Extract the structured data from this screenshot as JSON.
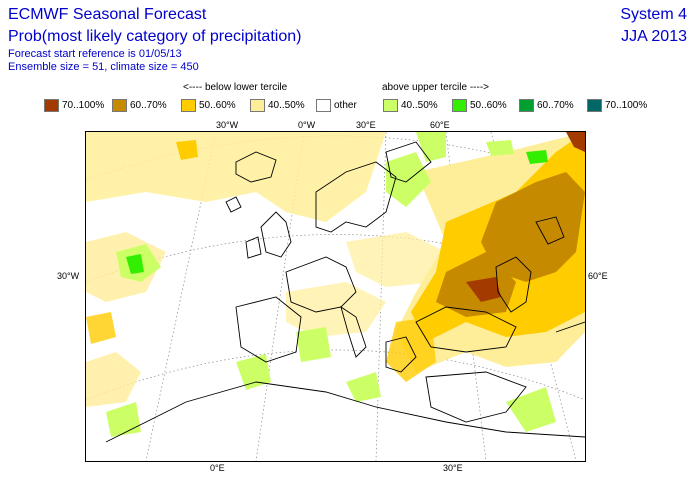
{
  "header": {
    "title": "ECMWF Seasonal Forecast",
    "subtitle": "Prob(most likely category of precipitation)",
    "start_ref": "Forecast start reference is 01/05/13",
    "ensemble": "Ensemble size = 51, climate size = 450",
    "system": "System 4",
    "period": "JJA 2013"
  },
  "legend": {
    "below_note": "<---- below lower tercile",
    "above_note": "above upper tercile ---->",
    "items": [
      {
        "label": "70..100%",
        "color": "#a33b00"
      },
      {
        "label": "60..70%",
        "color": "#c68a00"
      },
      {
        "label": "50..60%",
        "color": "#ffcc00"
      },
      {
        "label": "40..50%",
        "color": "#ffee99"
      },
      {
        "label": "other",
        "color": "#ffffff"
      },
      {
        "label": "40..50%",
        "color": "#ccff66"
      },
      {
        "label": "50..60%",
        "color": "#33ee00"
      },
      {
        "label": "60..70%",
        "color": "#00a030"
      },
      {
        "label": "70..100%",
        "color": "#006666"
      }
    ]
  },
  "axes": {
    "top": [
      "30°W",
      "0°W",
      "30°E",
      "60°E"
    ],
    "left": "30°W",
    "right": "60°E",
    "bottom": [
      "0°E",
      "30°E"
    ]
  }
}
